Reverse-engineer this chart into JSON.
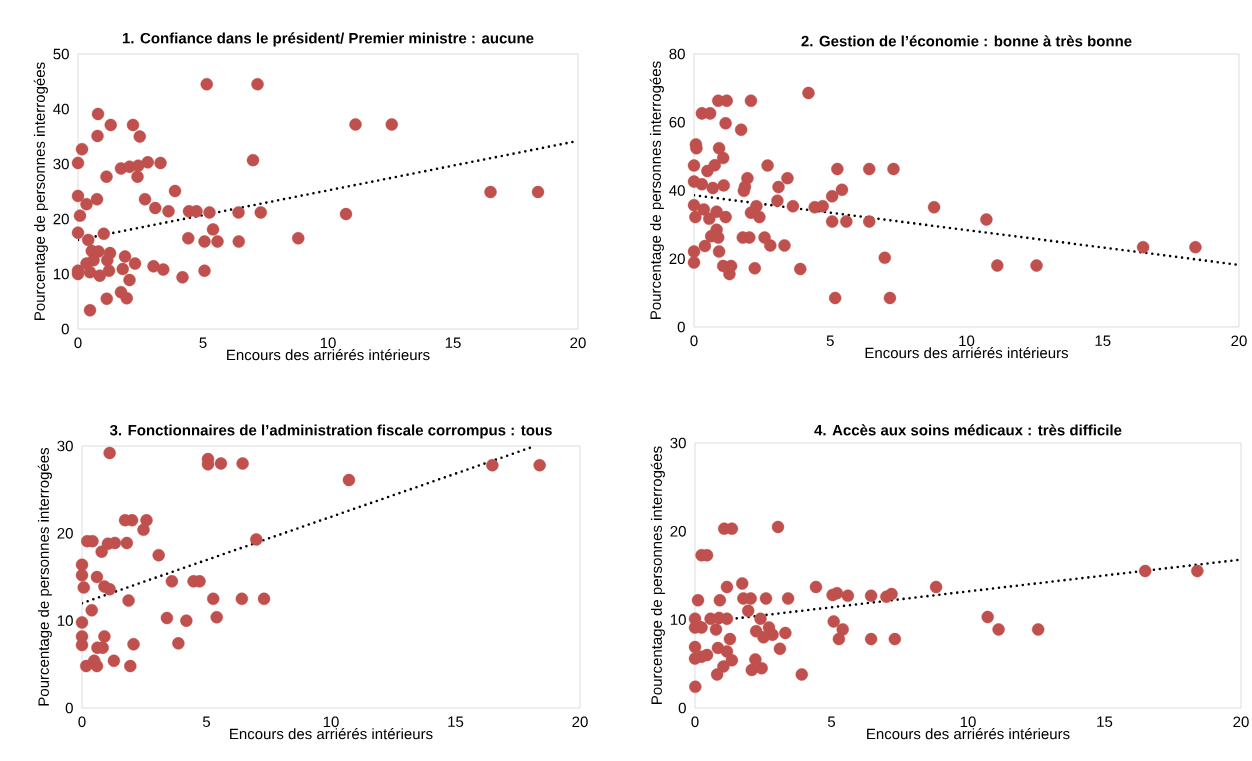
{
  "chart_data": [
    {
      "type": "scatter",
      "title": "1. Confiance dans le président/ Premier ministre : aucune",
      "xlabel": "Encours des arriérés intérieurs",
      "ylabel": "Pourcentage de personnes interrogées",
      "xlim": [
        0,
        20
      ],
      "ylim": [
        0,
        50
      ],
      "xticks": [
        0,
        5,
        10,
        15,
        20
      ],
      "yticks": [
        0,
        10,
        20,
        30,
        40,
        50
      ],
      "series": [
        {
          "color": "#c0504d",
          "marker": "circle",
          "x": [
            5.15,
            7.18,
            0.8,
            1.31,
            2.2,
            0.78,
            2.47,
            11.1,
            12.55,
            0.16,
            0,
            7.0,
            1.72,
            2.06,
            2.41,
            2.79,
            3.3,
            2.38,
            1.14,
            16.5,
            18.4,
            3.88,
            0,
            0.76,
            0.34,
            2.68,
            3.09,
            3.62,
            4.44,
            4.74,
            5.26,
            6.42,
            7.31,
            10.72,
            0.08,
            0,
            1.03,
            5.4,
            4.41,
            5.06,
            5.58,
            6.43,
            8.81,
            0.41,
            0.55,
            0.82,
            1.28,
            1.88,
            2.28,
            1.79,
            3.02,
            3.41,
            2.06,
            1.72,
            1.95,
            1.15,
            0.48,
            4.18,
            5.06,
            0,
            0,
            0.48,
            0.87,
            1.17,
            0.62,
            0.34,
            1.24
          ],
          "values": [
            44.5,
            44.5,
            39.1,
            37.1,
            37.1,
            35.1,
            35.0,
            37.2,
            37.2,
            32.7,
            30.2,
            30.7,
            29.2,
            29.5,
            29.7,
            30.3,
            30.2,
            27.7,
            27.7,
            24.9,
            24.9,
            25.1,
            24.2,
            23.6,
            22.7,
            23.6,
            22.0,
            21.4,
            21.4,
            21.4,
            21.2,
            21.2,
            21.2,
            20.9,
            20.6,
            17.5,
            17.3,
            18.1,
            16.5,
            15.9,
            15.9,
            15.9,
            16.5,
            16.2,
            14.2,
            14.1,
            13.8,
            13.2,
            11.9,
            10.9,
            11.4,
            10.8,
            8.9,
            6.7,
            5.6,
            5.5,
            3.4,
            9.4,
            10.6,
            10.6,
            10.0,
            10.3,
            9.7,
            12.5,
            12.5,
            11.9,
            10.6
          ]
        },
        {
          "type": "line",
          "color": "#000000",
          "line_style": "dotted",
          "x": [
            0,
            20
          ],
          "values": [
            16.2,
            34.2
          ]
        }
      ]
    },
    {
      "type": "scatter",
      "title": "2. Gestion de l’économie : bonne à très bonne",
      "xlabel": "Encours des arriérés intérieurs",
      "ylabel": "Pourcentage de personnes interrogées",
      "xlim": [
        0,
        20
      ],
      "ylim": [
        0,
        80
      ],
      "xticks": [
        0,
        5,
        10,
        15,
        20
      ],
      "yticks": [
        0,
        20,
        40,
        60,
        80
      ],
      "series": [
        {
          "color": "#c0504d",
          "marker": "circle",
          "x": [
            4.2,
            0.89,
            1.2,
            2.09,
            0.29,
            0.59,
            1.16,
            1.73,
            0.07,
            0.09,
            0.92,
            1.07,
            0,
            0.76,
            0.49,
            2.7,
            5.26,
            6.43,
            7.32,
            1.96,
            3.43,
            0,
            0.29,
            0.69,
            1.09,
            1.87,
            1.83,
            3.1,
            5.43,
            5.07,
            3.06,
            3.63,
            4.43,
            4.72,
            2.29,
            2.09,
            2.4,
            0,
            0.36,
            0.83,
            1.16,
            0.05,
            0.56,
            0.83,
            8.81,
            10.73,
            5.07,
            5.59,
            6.43,
            0.63,
            0.89,
            1.79,
            2.03,
            2.59,
            2.8,
            3.32,
            0.4,
            0,
            0,
            0.92,
            16.48,
            18.4,
            7.0,
            1.07,
            1.36,
            1.3,
            2.23,
            3.9,
            11.13,
            12.57,
            5.18,
            7.19
          ],
          "values": [
            68.6,
            66.3,
            66.3,
            66.3,
            62.6,
            62.6,
            59.7,
            57.8,
            53.5,
            52.4,
            52.4,
            49.5,
            47.3,
            47.4,
            45.7,
            47.3,
            46.3,
            46.3,
            46.3,
            43.6,
            43.6,
            42.6,
            41.8,
            40.7,
            41.5,
            41.1,
            39.9,
            41.0,
            40.2,
            38.3,
            37.0,
            35.4,
            35.1,
            35.4,
            35.4,
            33.5,
            32.2,
            35.7,
            34.4,
            33.8,
            32.2,
            32.2,
            31.7,
            28.5,
            35.1,
            31.5,
            30.9,
            30.9,
            30.9,
            26.6,
            26.2,
            26.2,
            26.2,
            26.2,
            23.9,
            23.9,
            23.7,
            22.1,
            18.9,
            22.1,
            23.4,
            23.4,
            20.3,
            17.9,
            17.9,
            15.5,
            17.2,
            17.0,
            18.0,
            18.0,
            8.5,
            8.5
          ]
        },
        {
          "type": "line",
          "color": "#000000",
          "line_style": "dotted",
          "x": [
            0,
            20
          ],
          "values": [
            38.6,
            18.2
          ]
        }
      ]
    },
    {
      "type": "scatter",
      "title": "3. Fonctionnaires de l’administration fiscale corrompus : tous",
      "xlabel": "Encours des arriérés intérieurs",
      "ylabel": "Pourcentage de personnes interrogées",
      "xlim": [
        0,
        20
      ],
      "ylim": [
        0,
        30
      ],
      "xticks": [
        0,
        5,
        10,
        15,
        20
      ],
      "yticks": [
        0,
        10,
        20,
        30
      ],
      "series": [
        {
          "color": "#c0504d",
          "marker": "circle",
          "x": [
            1.11,
            5.06,
            5.06,
            5.58,
            6.45,
            10.72,
            16.48,
            18.38,
            1.73,
            2.01,
            2.59,
            2.47,
            0.21,
            0.42,
            1.04,
            1.32,
            1.8,
            0.79,
            7.0,
            3.08,
            0,
            0,
            0.6,
            0.07,
            0.9,
            1.11,
            3.61,
            4.48,
            4.72,
            1.87,
            5.27,
            6.42,
            7.31,
            0.39,
            3.41,
            4.19,
            5.41,
            0,
            0,
            0,
            0.9,
            0.83,
            0.62,
            2.07,
            3.87,
            0.17,
            0.49,
            0.6,
            1.28,
            1.94
          ],
          "values": [
            29.2,
            28.5,
            27.9,
            28.0,
            28.0,
            26.1,
            27.8,
            27.8,
            21.5,
            21.5,
            21.5,
            20.4,
            19.1,
            19.1,
            18.8,
            18.9,
            18.9,
            17.9,
            19.3,
            17.5,
            16.4,
            15.2,
            15.0,
            13.8,
            13.9,
            13.6,
            14.5,
            14.5,
            14.5,
            12.3,
            12.5,
            12.5,
            12.5,
            11.2,
            10.3,
            10.0,
            10.4,
            9.8,
            8.2,
            7.2,
            8.2,
            6.9,
            6.9,
            7.3,
            7.4,
            4.8,
            5.4,
            4.8,
            5.4,
            4.8
          ]
        },
        {
          "type": "line",
          "color": "#000000",
          "line_style": "dotted",
          "x": [
            0,
            18.2
          ],
          "values": [
            12.0,
            30.0
          ]
        }
      ]
    },
    {
      "type": "scatter",
      "title": "4. Accès aux soins médicaux : très difficile",
      "xlabel": "Encours des arriérés intérieurs",
      "ylabel": "Pourcentage de personnes interrogées",
      "xlim": [
        0,
        20
      ],
      "ylim": [
        0,
        30
      ],
      "xticks": [
        0,
        5,
        10,
        15,
        20
      ],
      "yticks": [
        0,
        10,
        20,
        30
      ],
      "series": [
        {
          "color": "#c0504d",
          "marker": "circle",
          "x": [
            1.07,
            1.35,
            3.04,
            0.24,
            0.44,
            1.73,
            1.17,
            4.43,
            8.83,
            0.11,
            0.91,
            1.77,
            2.04,
            2.6,
            3.41,
            5.04,
            5.2,
            5.6,
            6.45,
            7.01,
            7.2,
            16.49,
            18.4,
            1.95,
            0,
            0.57,
            0.88,
            1.17,
            2.4,
            10.72,
            0,
            0.24,
            0.77,
            1.28,
            2.24,
            2.71,
            2.84,
            3.31,
            2.51,
            5.08,
            5.41,
            5.27,
            6.45,
            7.32,
            11.12,
            12.57,
            0,
            0.24,
            0.44,
            0,
            0.84,
            1.17,
            1.35,
            1.04,
            3.11,
            2.21,
            2.08,
            2.44,
            0.81,
            3.91,
            0.01
          ],
          "values": [
            20.3,
            20.3,
            20.5,
            17.3,
            17.3,
            14.1,
            13.7,
            13.7,
            13.7,
            12.2,
            12.2,
            12.4,
            12.4,
            12.4,
            12.4,
            12.8,
            13.0,
            12.7,
            12.7,
            12.6,
            12.9,
            15.5,
            15.5,
            11.0,
            10.1,
            10.1,
            10.2,
            10.1,
            10.1,
            10.3,
            9.1,
            9.1,
            8.9,
            7.8,
            8.7,
            9.1,
            8.3,
            8.5,
            8.0,
            9.8,
            8.9,
            7.8,
            7.8,
            7.8,
            8.9,
            8.9,
            6.9,
            5.8,
            6.0,
            5.6,
            6.8,
            6.4,
            5.4,
            4.7,
            6.7,
            5.5,
            4.3,
            4.5,
            3.8,
            3.8,
            2.4
          ]
        },
        {
          "type": "line",
          "color": "#000000",
          "line_style": "dotted",
          "x": [
            0,
            20
          ],
          "values": [
            9.6,
            16.8
          ]
        }
      ]
    }
  ]
}
